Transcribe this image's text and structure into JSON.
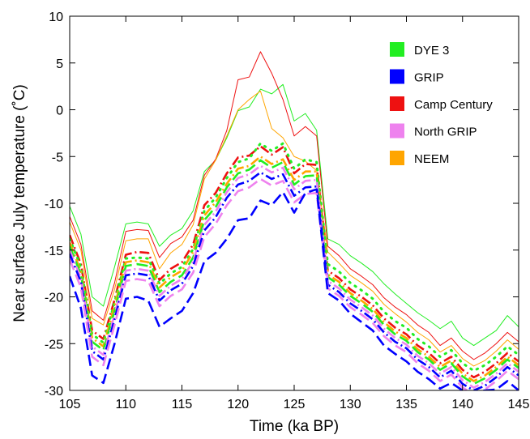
{
  "chart_data": {
    "type": "line",
    "xlabel": "Time (ka BP)",
    "ylabel": "Near surface July temperature (˚C)",
    "xlim": [
      105,
      145
    ],
    "ylim": [
      -30,
      10
    ],
    "x_ticks": [
      105,
      110,
      115,
      120,
      125,
      130,
      135,
      140,
      145
    ],
    "y_ticks": [
      -30,
      -25,
      -20,
      -15,
      -10,
      -5,
      0,
      5,
      10
    ],
    "grid": false,
    "legend_position": "top-right",
    "x": [
      105,
      106,
      107,
      108,
      109,
      110,
      111,
      112,
      113,
      114,
      115,
      116,
      117,
      118,
      119,
      120,
      121,
      122,
      123,
      124,
      125,
      126,
      127,
      128,
      129,
      130,
      131,
      132,
      133,
      134,
      135,
      136,
      137,
      138,
      139,
      140,
      141,
      142,
      143,
      144,
      145
    ],
    "legend": [
      {
        "name": "DYE 3",
        "color": "#22ee22"
      },
      {
        "name": "GRIP",
        "color": "#0000ff"
      },
      {
        "name": "Camp Century",
        "color": "#ee1111"
      },
      {
        "name": "North GRIP",
        "color": "#ee82ee"
      },
      {
        "name": "NEEM",
        "color": "#ffa500"
      }
    ],
    "series": [
      {
        "color": "#22ee22",
        "style": "solid",
        "values": [
          -10.3,
          -13.3,
          -20.0,
          -21.0,
          -16.8,
          -12.2,
          -12.0,
          -12.2,
          -14.6,
          -13.4,
          -12.7,
          -10.8,
          -6.6,
          -5.4,
          -3.0,
          -0.1,
          0.3,
          2.2,
          1.7,
          2.7,
          -1.2,
          -0.4,
          -2.2,
          -13.8,
          -14.4,
          -15.6,
          -16.4,
          -17.3,
          -18.6,
          -19.7,
          -20.7,
          -21.7,
          -22.5,
          -23.4,
          -22.6,
          -24.4,
          -25.2,
          -24.4,
          -23.6,
          -22.0,
          -23.2
        ]
      },
      {
        "color": "#ee1111",
        "style": "solid",
        "values": [
          -11.4,
          -14.4,
          -21.5,
          -22.5,
          -18.5,
          -13.0,
          -12.8,
          -12.9,
          -15.8,
          -14.3,
          -13.6,
          -11.8,
          -7.0,
          -5.3,
          -2.2,
          3.2,
          3.5,
          6.2,
          3.9,
          1.1,
          -2.8,
          -1.8,
          -2.8,
          -14.6,
          -15.6,
          -17.0,
          -17.8,
          -18.7,
          -20.1,
          -21.1,
          -21.9,
          -23.0,
          -23.8,
          -25.2,
          -24.4,
          -25.8,
          -26.7,
          -26.0,
          -25.0,
          -23.8,
          -24.8
        ]
      },
      {
        "color": "#ffa500",
        "style": "solid",
        "values": [
          -12.0,
          -15.0,
          -22.3,
          -23.0,
          -19.2,
          -14.0,
          -13.8,
          -13.8,
          -17.0,
          -15.3,
          -14.4,
          -12.3,
          -7.4,
          -5.4,
          -2.8,
          0.0,
          1.1,
          2.0,
          -2.0,
          -3.0,
          -5.0,
          -5.5,
          -6.5,
          -15.2,
          -16.4,
          -17.7,
          -18.5,
          -19.4,
          -20.8,
          -21.8,
          -22.7,
          -23.8,
          -24.6,
          -25.9,
          -25.2,
          -26.6,
          -27.4,
          -26.8,
          -25.8,
          -24.6,
          -25.6
        ]
      },
      {
        "color": "#ee1111",
        "style": "dashdot",
        "values": [
          -13.4,
          -16.5,
          -23.6,
          -24.5,
          -20.3,
          -15.5,
          -15.2,
          -15.3,
          -18.2,
          -17.0,
          -16.3,
          -14.4,
          -10.2,
          -8.9,
          -6.8,
          -5.1,
          -4.9,
          -3.9,
          -4.8,
          -4.0,
          -6.8,
          -5.8,
          -5.9,
          -17.2,
          -18.0,
          -19.2,
          -20.0,
          -20.9,
          -22.3,
          -23.3,
          -24.0,
          -25.2,
          -26.0,
          -27.1,
          -26.4,
          -27.8,
          -28.6,
          -28.0,
          -27.1,
          -26.0,
          -26.9
        ]
      },
      {
        "color": "#22ee22",
        "style": "dotted",
        "values": [
          -13.8,
          -16.8,
          -24.0,
          -24.9,
          -20.6,
          -15.9,
          -15.8,
          -15.9,
          -18.6,
          -17.5,
          -16.8,
          -14.9,
          -10.8,
          -9.4,
          -7.3,
          -5.6,
          -5.2,
          -3.6,
          -4.4,
          -3.6,
          -6.3,
          -5.3,
          -5.6,
          -16.5,
          -17.3,
          -18.5,
          -19.3,
          -20.2,
          -21.6,
          -22.6,
          -23.3,
          -24.5,
          -25.3,
          -26.4,
          -25.7,
          -27.1,
          -27.9,
          -27.3,
          -26.4,
          -25.3,
          -26.2
        ]
      },
      {
        "color": "#ffa500",
        "style": "dashdot",
        "values": [
          -14.2,
          -17.3,
          -24.4,
          -25.3,
          -21.0,
          -16.3,
          -16.1,
          -16.3,
          -19.0,
          -17.9,
          -17.2,
          -15.2,
          -11.3,
          -9.9,
          -7.9,
          -6.3,
          -6.0,
          -5.0,
          -5.8,
          -5.3,
          -7.5,
          -6.6,
          -6.6,
          -17.6,
          -18.4,
          -19.6,
          -20.4,
          -21.3,
          -22.7,
          -23.7,
          -24.4,
          -25.6,
          -26.4,
          -27.5,
          -26.8,
          -28.2,
          -29.0,
          -28.4,
          -27.5,
          -26.4,
          -27.3
        ]
      },
      {
        "color": "#22ee22",
        "style": "dashed",
        "values": [
          -14.6,
          -17.6,
          -24.8,
          -25.7,
          -21.5,
          -16.7,
          -16.5,
          -16.7,
          -19.5,
          -18.4,
          -17.7,
          -15.8,
          -11.8,
          -10.4,
          -8.3,
          -6.8,
          -6.4,
          -5.4,
          -6.2,
          -5.6,
          -8.0,
          -7.1,
          -7.0,
          -17.9,
          -18.7,
          -19.9,
          -20.7,
          -21.6,
          -23.0,
          -24.0,
          -24.7,
          -25.9,
          -26.7,
          -27.8,
          -27.1,
          -28.5,
          -29.3,
          -28.7,
          -27.8,
          -26.7,
          -27.6
        ]
      },
      {
        "color": "#ee82ee",
        "style": "dashdot",
        "values": [
          -15.0,
          -18.0,
          -25.3,
          -26.2,
          -21.9,
          -17.2,
          -17.0,
          -17.2,
          -19.9,
          -18.8,
          -18.1,
          -16.2,
          -12.3,
          -10.9,
          -8.8,
          -7.3,
          -6.9,
          -6.0,
          -6.7,
          -6.2,
          -8.5,
          -7.6,
          -7.5,
          -18.3,
          -19.1,
          -20.3,
          -21.1,
          -22.0,
          -23.4,
          -24.4,
          -25.1,
          -26.3,
          -27.1,
          -28.2,
          -27.5,
          -28.9,
          -29.7,
          -29.1,
          -28.2,
          -27.1,
          -28.0
        ]
      },
      {
        "color": "#0000ff",
        "style": "dashdot",
        "values": [
          -15.4,
          -18.4,
          -25.8,
          -26.7,
          -22.4,
          -17.7,
          -17.5,
          -17.7,
          -20.4,
          -19.3,
          -18.6,
          -16.7,
          -12.9,
          -11.5,
          -9.4,
          -8.0,
          -7.6,
          -6.7,
          -7.4,
          -6.9,
          -9.2,
          -8.3,
          -8.2,
          -18.7,
          -19.5,
          -20.7,
          -21.5,
          -22.4,
          -23.8,
          -24.8,
          -25.5,
          -26.7,
          -27.5,
          -28.6,
          -27.9,
          -29.3,
          -30.0,
          -29.5,
          -28.6,
          -27.5,
          -28.4
        ]
      },
      {
        "color": "#ee82ee",
        "style": "dashed",
        "values": [
          -16.0,
          -19.0,
          -26.4,
          -27.3,
          -23.0,
          -18.3,
          -18.1,
          -18.3,
          -21.0,
          -19.9,
          -19.2,
          -17.4,
          -13.6,
          -12.2,
          -10.2,
          -8.7,
          -8.3,
          -7.4,
          -8.1,
          -7.6,
          -9.9,
          -9.0,
          -8.9,
          -19.1,
          -19.9,
          -21.1,
          -21.9,
          -22.8,
          -24.2,
          -25.2,
          -25.9,
          -27.1,
          -27.9,
          -29.0,
          -28.3,
          -29.7,
          -30.4,
          -29.9,
          -29.0,
          -27.9,
          -28.8
        ]
      },
      {
        "color": "#0000ff",
        "style": "dashed",
        "values": [
          -17.8,
          -21.2,
          -28.4,
          -29.2,
          -25.0,
          -20.2,
          -20.0,
          -20.4,
          -23.2,
          -22.3,
          -21.5,
          -19.6,
          -16.2,
          -15.3,
          -13.8,
          -11.8,
          -11.6,
          -9.7,
          -10.2,
          -8.8,
          -11.0,
          -8.9,
          -8.5,
          -19.6,
          -20.4,
          -21.8,
          -22.7,
          -23.6,
          -25.2,
          -26.1,
          -26.9,
          -28.0,
          -28.8,
          -29.8,
          -29.2,
          -30.0,
          -30.2,
          -30.0,
          -29.9,
          -29.0,
          -30.0
        ]
      }
    ]
  }
}
